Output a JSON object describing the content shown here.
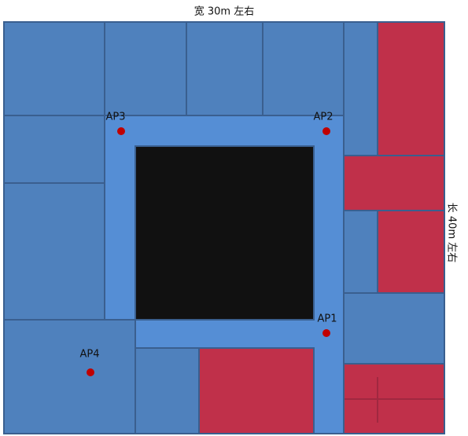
{
  "top_label": "宽 30m 左右",
  "side_label": "长 40m 左右",
  "access_points": [
    {
      "label": "AP1"
    },
    {
      "label": "AP2"
    },
    {
      "label": "AP3"
    },
    {
      "label": "AP4"
    }
  ]
}
